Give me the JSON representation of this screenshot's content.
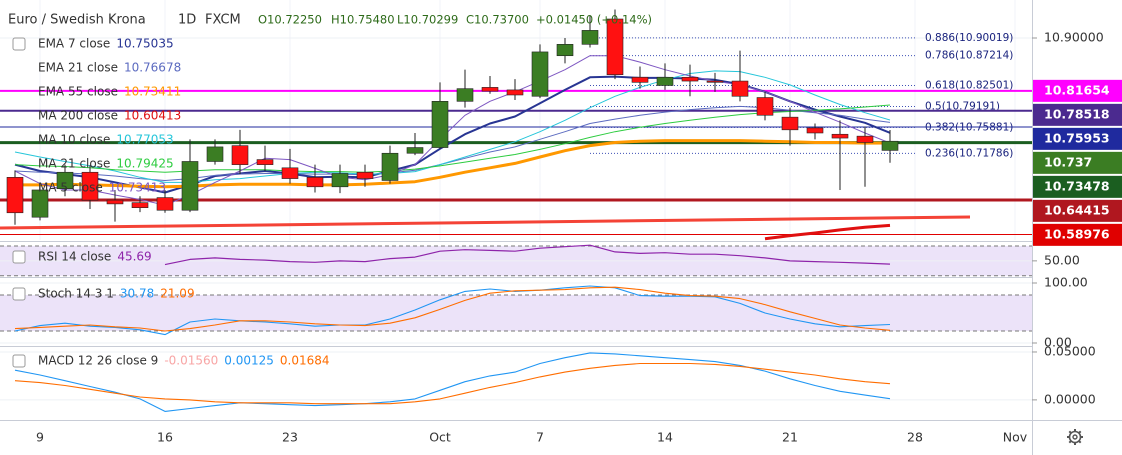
{
  "chart_data": [
    {
      "type": "candlestick",
      "header": {
        "symbol": "Euro / Swedish Krona",
        "interval": "1D",
        "source": "FXCM",
        "ohlc_text": [
          "O10.72250",
          "H10.75480",
          "L10.70299",
          "C10.73700"
        ],
        "change_text": "+0.01450 (+0.14%)"
      },
      "xlim": [
        -0.6,
        40.68
      ],
      "xticks": [
        {
          "value": 1,
          "label": "9"
        },
        {
          "value": 6,
          "label": "16"
        },
        {
          "value": 11,
          "label": "23"
        },
        {
          "value": 17,
          "label": "Oct"
        },
        {
          "value": 21,
          "label": "7"
        },
        {
          "value": 26,
          "label": "14"
        },
        {
          "value": 31,
          "label": "21"
        },
        {
          "value": 36,
          "label": "28"
        },
        {
          "value": 40,
          "label": "Nov"
        }
      ],
      "ylim": [
        10.581,
        10.96
      ],
      "yticks": [
        {
          "value": 10.9,
          "label": "10.90000"
        }
      ],
      "up_color": "#3b7d23",
      "down_color": "#ff1111",
      "open": [
        10.68,
        10.617,
        10.662,
        10.688,
        10.644,
        10.64,
        10.648,
        10.628,
        10.705,
        10.73,
        10.708,
        10.695,
        10.68,
        10.665,
        10.688,
        10.675,
        10.718,
        10.727,
        10.8,
        10.822,
        10.818,
        10.808,
        10.872,
        10.89,
        10.93,
        10.838,
        10.825,
        10.838,
        10.832,
        10.832,
        10.806,
        10.775,
        10.758,
        10.748,
        10.745,
        10.7225
      ],
      "high": [
        10.691,
        10.668,
        10.7,
        10.699,
        10.66,
        10.65,
        10.66,
        10.74,
        10.74,
        10.755,
        10.73,
        10.725,
        10.7,
        10.7,
        10.7,
        10.73,
        10.75,
        10.83,
        10.85,
        10.84,
        10.835,
        10.89,
        10.9,
        10.935,
        10.945,
        10.855,
        10.86,
        10.858,
        10.845,
        10.88,
        10.815,
        10.79,
        10.765,
        10.77,
        10.76,
        10.7548
      ],
      "low": [
        10.605,
        10.612,
        10.65,
        10.63,
        10.61,
        10.625,
        10.624,
        10.625,
        10.7,
        10.685,
        10.69,
        10.67,
        10.656,
        10.655,
        10.665,
        10.67,
        10.715,
        10.725,
        10.79,
        10.812,
        10.802,
        10.805,
        10.86,
        10.885,
        10.835,
        10.82,
        10.818,
        10.808,
        10.815,
        10.8,
        10.77,
        10.73,
        10.74,
        10.66,
        10.665,
        10.70299
      ],
      "close": [
        10.624,
        10.66,
        10.688,
        10.644,
        10.638,
        10.632,
        10.628,
        10.705,
        10.728,
        10.7,
        10.7,
        10.678,
        10.665,
        10.686,
        10.678,
        10.718,
        10.727,
        10.8,
        10.82,
        10.816,
        10.81,
        10.878,
        10.89,
        10.912,
        10.842,
        10.83,
        10.838,
        10.832,
        10.83,
        10.808,
        10.778,
        10.755,
        10.75,
        10.742,
        10.735,
        10.737
      ],
      "series": [
        {
          "name": "EMA 7 close",
          "color": "#283593",
          "width": 2,
          "values": [
            10.7,
            10.69,
            10.685,
            10.68,
            10.672,
            10.664,
            10.656,
            10.668,
            10.682,
            10.686,
            10.69,
            10.686,
            10.68,
            10.681,
            10.68,
            10.69,
            10.7,
            10.725,
            10.748,
            10.765,
            10.776,
            10.797,
            10.818,
            10.838,
            10.839,
            10.837,
            10.837,
            10.836,
            10.834,
            10.827,
            10.815,
            10.8,
            10.787,
            10.776,
            10.766,
            10.75035
          ]
        },
        {
          "name": "EMA 21 close",
          "color": "#5c6bc0",
          "width": 1,
          "values": [
            10.69,
            10.688,
            10.687,
            10.685,
            10.682,
            10.678,
            10.675,
            10.678,
            10.683,
            10.685,
            10.686,
            10.686,
            10.685,
            10.685,
            10.684,
            10.687,
            10.691,
            10.7,
            10.71,
            10.72,
            10.728,
            10.74,
            10.752,
            10.765,
            10.772,
            10.778,
            10.783,
            10.787,
            10.79,
            10.792,
            10.79,
            10.786,
            10.782,
            10.778,
            10.772,
            10.76678
          ]
        },
        {
          "name": "EMA 55 close",
          "color": "#ff9800",
          "width": 3,
          "values": [
            10.668,
            10.668,
            10.669,
            10.668,
            10.667,
            10.666,
            10.665,
            10.666,
            10.668,
            10.669,
            10.669,
            10.669,
            10.668,
            10.668,
            10.669,
            10.671,
            10.673,
            10.68,
            10.688,
            10.695,
            10.702,
            10.712,
            10.722,
            10.73,
            10.735,
            10.737,
            10.738,
            10.738,
            10.738,
            10.738,
            10.737,
            10.736,
            10.735,
            10.735,
            10.734,
            10.73411
          ]
        },
        {
          "name": "MA 200 close",
          "color": "#e01010",
          "width": 3,
          "values": [
            null,
            null,
            null,
            null,
            null,
            null,
            null,
            null,
            null,
            null,
            null,
            null,
            null,
            null,
            null,
            null,
            null,
            null,
            null,
            null,
            null,
            null,
            null,
            null,
            null,
            null,
            null,
            null,
            null,
            null,
            10.583,
            10.588,
            10.592,
            10.597,
            10.601,
            10.60413
          ]
        },
        {
          "name": "MA 10 close",
          "color": "#26c6da",
          "width": 1,
          "values": [
            10.72,
            10.712,
            10.705,
            10.698,
            10.69,
            10.68,
            10.672,
            10.672,
            10.676,
            10.678,
            10.682,
            10.686,
            10.688,
            10.687,
            10.685,
            10.686,
            10.689,
            10.7,
            10.712,
            10.724,
            10.736,
            10.752,
            10.77,
            10.79,
            10.808,
            10.822,
            10.834,
            10.844,
            10.848,
            10.847,
            10.838,
            10.826,
            10.81,
            10.795,
            10.782,
            10.77053
          ]
        },
        {
          "name": "MA 21 close",
          "color": "#2ecc40",
          "width": 1,
          "values": [
            10.7,
            10.698,
            10.697,
            10.695,
            10.692,
            10.69,
            10.688,
            10.69,
            10.692,
            10.692,
            10.692,
            10.69,
            10.689,
            10.689,
            10.688,
            10.69,
            10.693,
            10.698,
            10.704,
            10.71,
            10.716,
            10.724,
            10.733,
            10.743,
            10.752,
            10.759,
            10.765,
            10.77,
            10.775,
            10.779,
            10.782,
            10.784,
            10.786,
            10.788,
            10.791,
            10.79425
          ]
        },
        {
          "name": "MA 5 close",
          "color": "#7e57c2",
          "width": 1,
          "values": [
            10.69,
            10.67,
            10.66,
            10.66,
            10.652,
            10.645,
            10.636,
            10.652,
            10.672,
            10.69,
            10.71,
            10.708,
            10.694,
            10.68,
            10.676,
            10.684,
            10.7,
            10.74,
            10.778,
            10.8,
            10.815,
            10.832,
            10.85,
            10.872,
            10.872,
            10.862,
            10.85,
            10.84,
            10.832,
            10.826,
            10.815,
            10.8,
            10.783,
            10.767,
            10.75,
            10.73413
          ]
        }
      ],
      "levels": [
        {
          "value": 10.81654,
          "color": "#ff00ff",
          "width": 2
        },
        {
          "value": 10.78518,
          "color": "#4b2a8f",
          "width": 2
        },
        {
          "value": 10.75953,
          "color": "#1f2a9e",
          "width": 1
        },
        {
          "value": 10.737,
          "color": "#3b7d23",
          "width": 0
        },
        {
          "value": 10.73478,
          "color": "#1b5e20",
          "width": 3
        },
        {
          "value": 10.64415,
          "color": "#b0171f",
          "width": 3
        },
        {
          "value": 10.58976,
          "color": "#e00000",
          "width": 1
        }
      ],
      "fib": [
        {
          "value": 10.90019,
          "label": "0.886(10.90019)"
        },
        {
          "value": 10.87214,
          "label": "0.786(10.87214)"
        },
        {
          "value": 10.82501,
          "label": "0.618(10.82501)"
        },
        {
          "value": 10.79191,
          "label": "0.5(10.79191)"
        },
        {
          "value": 10.75881,
          "label": "0.382(10.75881)"
        },
        {
          "value": 10.71786,
          "label": "0.236(10.71786)"
        }
      ]
    },
    {
      "type": "line",
      "title": "RSI 14 close",
      "color": "#8e24aa",
      "ylim": [
        31,
        74
      ],
      "yticks": [
        {
          "value": 50,
          "label": "50.00"
        }
      ],
      "band": [
        30,
        70
      ],
      "values": [
        null,
        null,
        null,
        null,
        null,
        null,
        45,
        52,
        54,
        52,
        51,
        49,
        48,
        50,
        49,
        53,
        55,
        63,
        65,
        64,
        63,
        67,
        69,
        71,
        62,
        60,
        61,
        59,
        59,
        57,
        54,
        50,
        49,
        48,
        47,
        45.69
      ]
    },
    {
      "type": "line",
      "title": "Stoch 14 3 1",
      "ylim": [
        -5,
        105
      ],
      "yticks": [
        {
          "value": 100,
          "label": "100.00"
        },
        {
          "value": 0,
          "label": "0.00"
        }
      ],
      "band": [
        20,
        80
      ],
      "series": [
        {
          "color": "#2196f3",
          "values": [
            20,
            29,
            33,
            28,
            26,
            22,
            14,
            35,
            40,
            37,
            35,
            32,
            28,
            30,
            30,
            40,
            55,
            72,
            86,
            90,
            86,
            88,
            92,
            95,
            92,
            79,
            78,
            78,
            77,
            66,
            50,
            40,
            32,
            27,
            29,
            30.78
          ]
        },
        {
          "color": "#ff6d00",
          "values": [
            24,
            26,
            28,
            30,
            27,
            25,
            20,
            24,
            30,
            37,
            37,
            35,
            32,
            30,
            29,
            33,
            42,
            56,
            71,
            83,
            87,
            88,
            89,
            92,
            93,
            89,
            83,
            79,
            78,
            74,
            64,
            52,
            41,
            30,
            25,
            21.09
          ]
        }
      ]
    },
    {
      "type": "line",
      "title": "MACD 12 26 close 9",
      "histogram_label": "-0.01560",
      "ylim": [
        -0.021,
        0.0552
      ],
      "yticks": [
        {
          "value": 0.05,
          "label": "0.05000"
        },
        {
          "value": 0,
          "label": "0.00000"
        }
      ],
      "series": [
        {
          "color": "#2196f3",
          "values": [
            0.031,
            0.026,
            0.02,
            0.014,
            0.008,
            0.001,
            -0.012,
            -0.009,
            -0.006,
            -0.003,
            -0.004,
            -0.005,
            -0.006,
            -0.005,
            -0.004,
            -0.002,
            0.001,
            0.01,
            0.019,
            0.025,
            0.029,
            0.038,
            0.044,
            0.049,
            0.048,
            0.046,
            0.044,
            0.042,
            0.04,
            0.036,
            0.03,
            0.022,
            0.015,
            0.009,
            0.005,
            0.00125
          ]
        },
        {
          "color": "#ff6d00",
          "values": [
            0.02,
            0.018,
            0.015,
            0.011,
            0.007,
            0.003,
            0.001,
            0.0,
            -0.002,
            -0.003,
            -0.003,
            -0.003,
            -0.004,
            -0.004,
            -0.004,
            -0.004,
            -0.002,
            0.001,
            0.007,
            0.013,
            0.018,
            0.024,
            0.029,
            0.033,
            0.036,
            0.038,
            0.038,
            0.038,
            0.037,
            0.035,
            0.032,
            0.029,
            0.026,
            0.022,
            0.019,
            0.01684
          ]
        }
      ]
    }
  ]
}
